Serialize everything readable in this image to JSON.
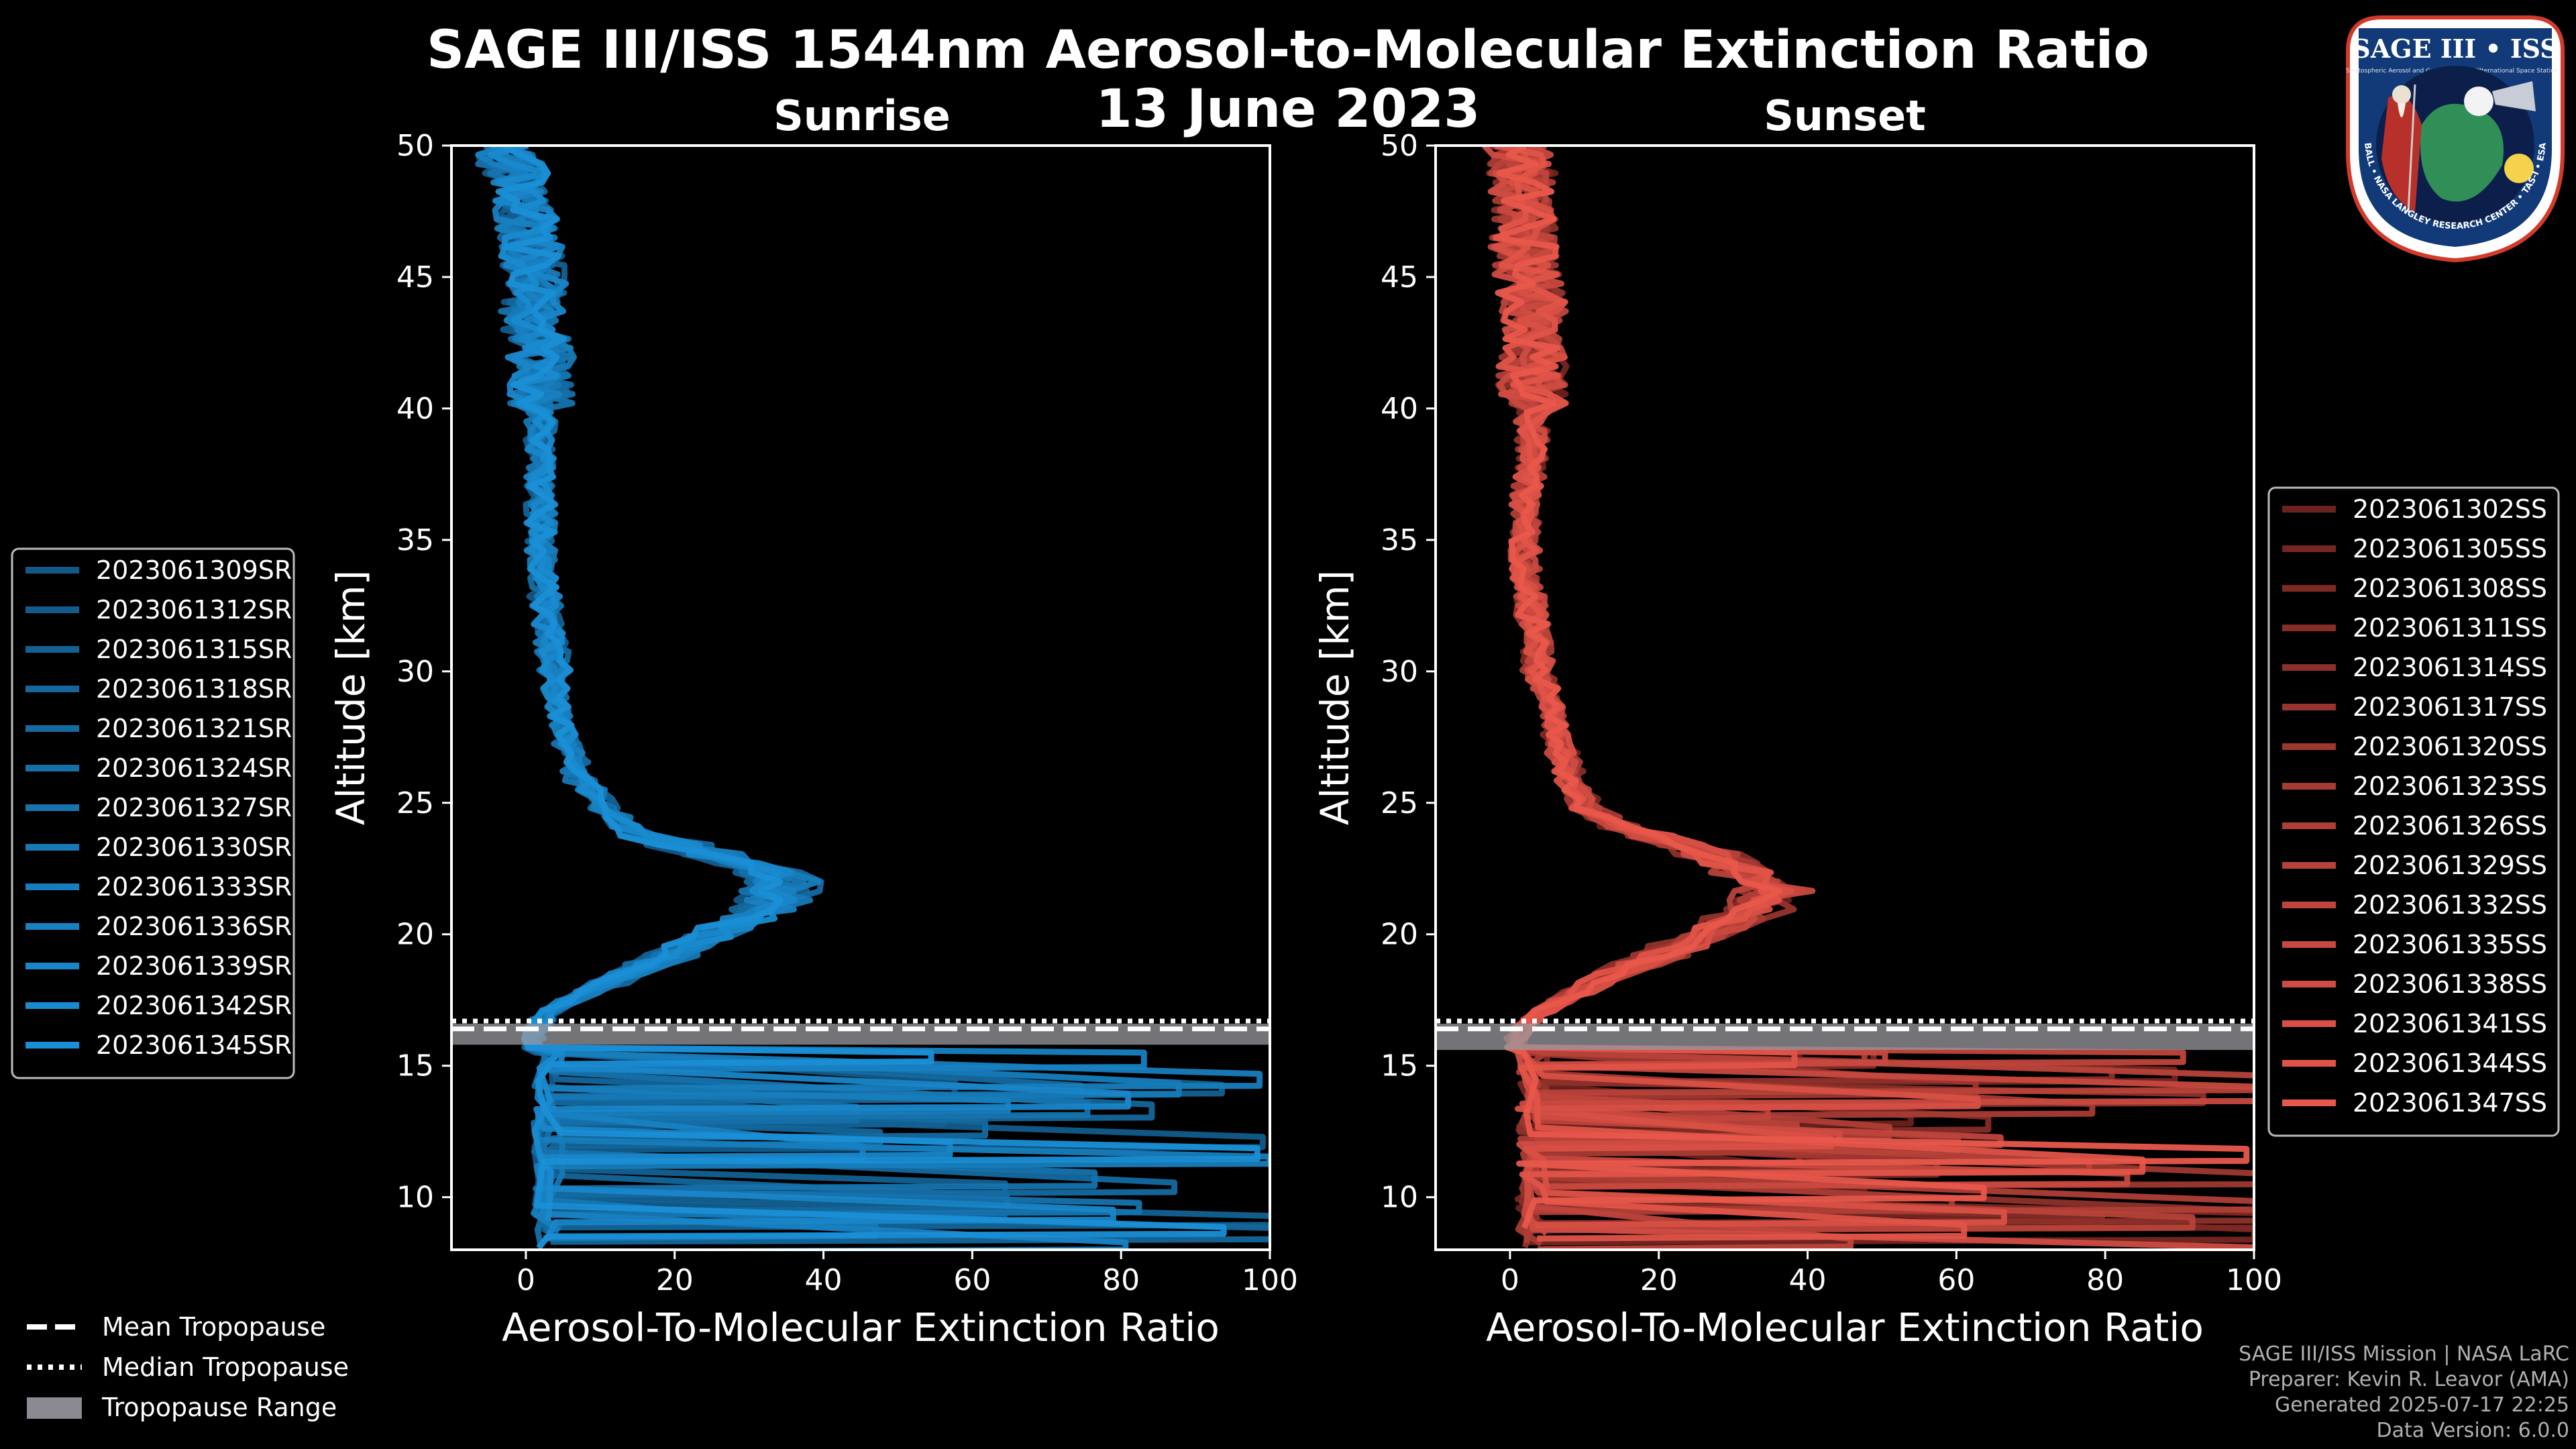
{
  "title": "SAGE III/ISS 1544nm Aerosol-to-Molecular Extinction Ratio",
  "date": "13 June 2023",
  "credits": [
    "SAGE III/ISS Mission | NASA LaRC",
    "Preparer: Kevin R. Leavor (AMA)",
    "Generated 2025-07-17 22:25",
    "Data Version: 6.0.0"
  ],
  "logo": {
    "name": "SAGE III • ISS",
    "ring_text": "BALL • NASA LANGLEY RESEARCH CENTER • TAS-I • ESA",
    "sub_left": "Stratospheric Aerosol and Gas Experiment III",
    "sub_right": "International Space Station"
  },
  "legend_common": [
    "Mean Tropopause",
    "Median Tropopause",
    "Tropopause Range"
  ],
  "chart_data": [
    {
      "type": "line",
      "title": "Sunrise",
      "xlabel": "Aerosol-To-Molecular Extinction Ratio",
      "ylabel": "Altitude [km]",
      "xlim": [
        -10,
        100
      ],
      "ylim": [
        8,
        50
      ],
      "xticks": [
        0,
        20,
        40,
        60,
        80,
        100
      ],
      "yticks": [
        10,
        15,
        20,
        25,
        30,
        35,
        40,
        45,
        50
      ],
      "color": "#1a8fd6",
      "tropopause": {
        "mean": 16.4,
        "median": 16.7,
        "range": [
          15.8,
          16.6
        ]
      },
      "profile": {
        "alt": [
          9,
          11,
          13,
          15,
          16.3,
          17,
          17.5,
          18,
          19,
          20,
          21,
          21.5,
          22,
          22.5,
          23,
          23.5,
          24,
          24.5,
          25,
          26,
          27,
          28,
          29,
          30,
          32,
          34,
          36,
          38,
          40,
          42,
          44,
          46,
          48,
          50
        ],
        "ratio": [
          2,
          1,
          2,
          1,
          1,
          3,
          6,
          10,
          18,
          26,
          33,
          35,
          35,
          32,
          26,
          20,
          14,
          12,
          10,
          7,
          6,
          5,
          4,
          4,
          3,
          2,
          2,
          2,
          2,
          2,
          1,
          1,
          0,
          -3
        ]
      },
      "series": [
        "2023061309SR",
        "2023061312SR",
        "2023061315SR",
        "2023061318SR",
        "2023061321SR",
        "2023061324SR",
        "2023061327SR",
        "2023061330SR",
        "2023061333SR",
        "2023061336SR",
        "2023061339SR",
        "2023061342SR",
        "2023061345SR"
      ]
    },
    {
      "type": "line",
      "title": "Sunset",
      "xlabel": "Aerosol-To-Molecular Extinction Ratio",
      "ylabel": "Altitude [km]",
      "xlim": [
        -10,
        100
      ],
      "ylim": [
        8,
        50
      ],
      "xticks": [
        0,
        20,
        40,
        60,
        80,
        100
      ],
      "yticks": [
        10,
        15,
        20,
        25,
        30,
        35,
        40,
        45,
        50
      ],
      "color": "#e8574b",
      "tropopause": {
        "mean": 16.4,
        "median": 16.7,
        "range": [
          15.6,
          16.6
        ]
      },
      "profile": {
        "alt": [
          9,
          11,
          13,
          15,
          16.3,
          17,
          17.5,
          18,
          19,
          20,
          21,
          21.5,
          22,
          22.5,
          23,
          23.5,
          24,
          24.5,
          25,
          26,
          27,
          28,
          29,
          30,
          32,
          34,
          36,
          38,
          40,
          42,
          44,
          46,
          48,
          50
        ],
        "ratio": [
          2,
          1,
          2,
          1,
          1,
          4,
          7,
          11,
          19,
          27,
          33,
          36,
          34,
          31,
          28,
          22,
          16,
          12,
          10,
          8,
          7,
          6,
          5,
          4,
          3,
          2,
          2,
          3,
          3,
          3,
          3,
          2,
          2,
          1
        ]
      },
      "series": [
        "2023061302SS",
        "2023061305SS",
        "2023061308SS",
        "2023061311SS",
        "2023061314SS",
        "2023061317SS",
        "2023061320SS",
        "2023061323SS",
        "2023061326SS",
        "2023061329SS",
        "2023061332SS",
        "2023061335SS",
        "2023061338SS",
        "2023061341SS",
        "2023061344SS",
        "2023061347SS"
      ]
    }
  ]
}
